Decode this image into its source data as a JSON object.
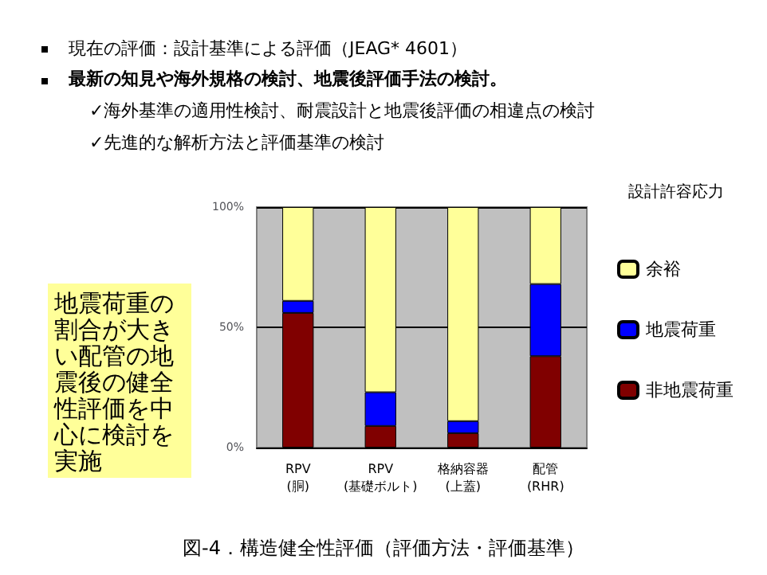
{
  "chart_data": {
    "type": "bar",
    "stacked": true,
    "title": "現在の評価：設計基準による評価（JEAG* 4601）",
    "subtitle": "最新の知見や海外規格の検討、地震後評価手法の検討。",
    "annotations": [
      "✓海外基準の適用性検討、耐震設計と地震後評価の相違点の検討",
      "✓先進的な解析方法と評価基準の検討",
      "地震荷重の割合が大きい配管の地震後の健全性評価を中心に検討を実施",
      "設計許容応力",
      "図-4．構造健全性評価（評価方法・評価基準）"
    ],
    "categories": [
      "RPV\n(胴)",
      "RPV\n(基礎ボルト)",
      "格納容器\n(上蓋)",
      "配管\n(RHR)"
    ],
    "series": [
      {
        "name": "非地震荷重",
        "color": "#800000",
        "values": [
          56,
          9,
          6,
          38
        ]
      },
      {
        "name": "地震荷重",
        "color": "#0000ff",
        "values": [
          5,
          14,
          5,
          30
        ]
      },
      {
        "name": "余裕",
        "color": "#ffff99",
        "values": [
          39,
          77,
          89,
          32
        ]
      }
    ],
    "ylim": [
      0,
      100
    ],
    "yticks": [
      {
        "value": 0,
        "label": "0%"
      },
      {
        "value": 50,
        "label": "50%"
      },
      {
        "value": 100,
        "label": "100%"
      }
    ],
    "grid": "y",
    "legend": "right"
  }
}
